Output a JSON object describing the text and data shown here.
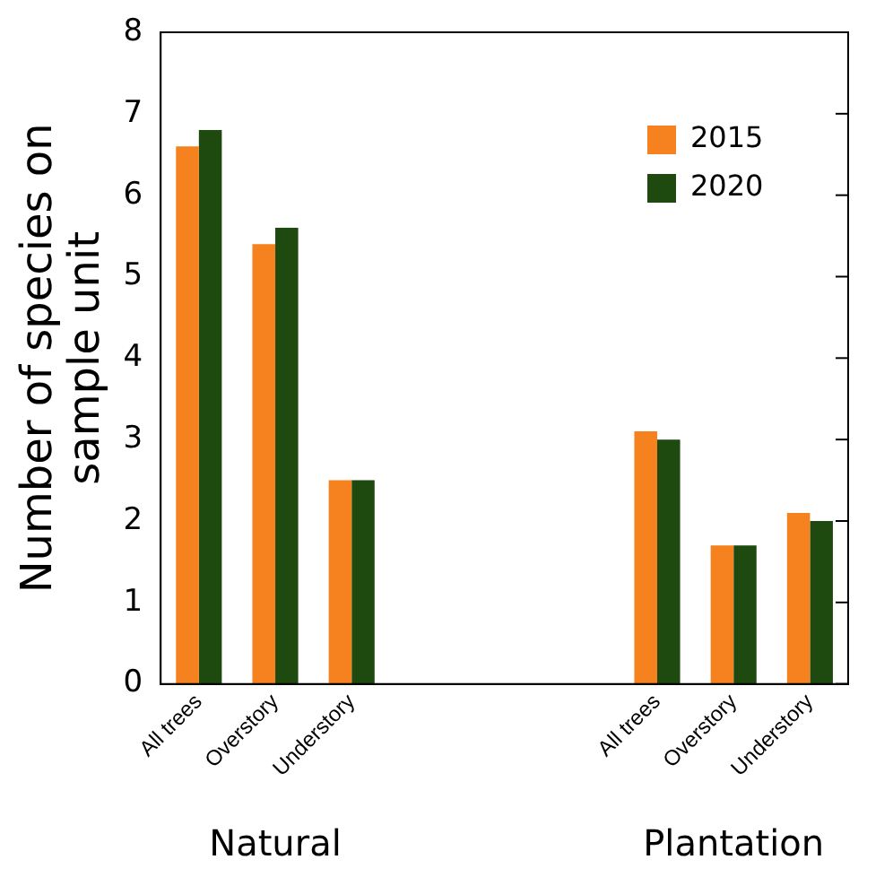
{
  "chart_data": {
    "type": "bar",
    "ylabel": "Number of species on sample unit",
    "categories": [
      "All trees",
      "Overstory",
      "Understory",
      null,
      null,
      null,
      "All trees",
      "Overstory",
      "Understory"
    ],
    "series": [
      {
        "name": "2015",
        "color": "#f5821f",
        "values": [
          6.6,
          5.4,
          2.5,
          0,
          0,
          0,
          3.1,
          1.7,
          2.1
        ]
      },
      {
        "name": "2020",
        "color": "#1f4a0f",
        "values": [
          6.8,
          5.6,
          2.5,
          0,
          0,
          0,
          3.0,
          1.7,
          2.0
        ]
      }
    ],
    "ylim": [
      0,
      8
    ],
    "yticks": [
      0,
      1,
      2,
      3,
      4,
      5,
      6,
      7,
      8
    ],
    "grid": false,
    "legend": "top right",
    "annotations": [
      "Natural",
      "Plantation"
    ]
  }
}
